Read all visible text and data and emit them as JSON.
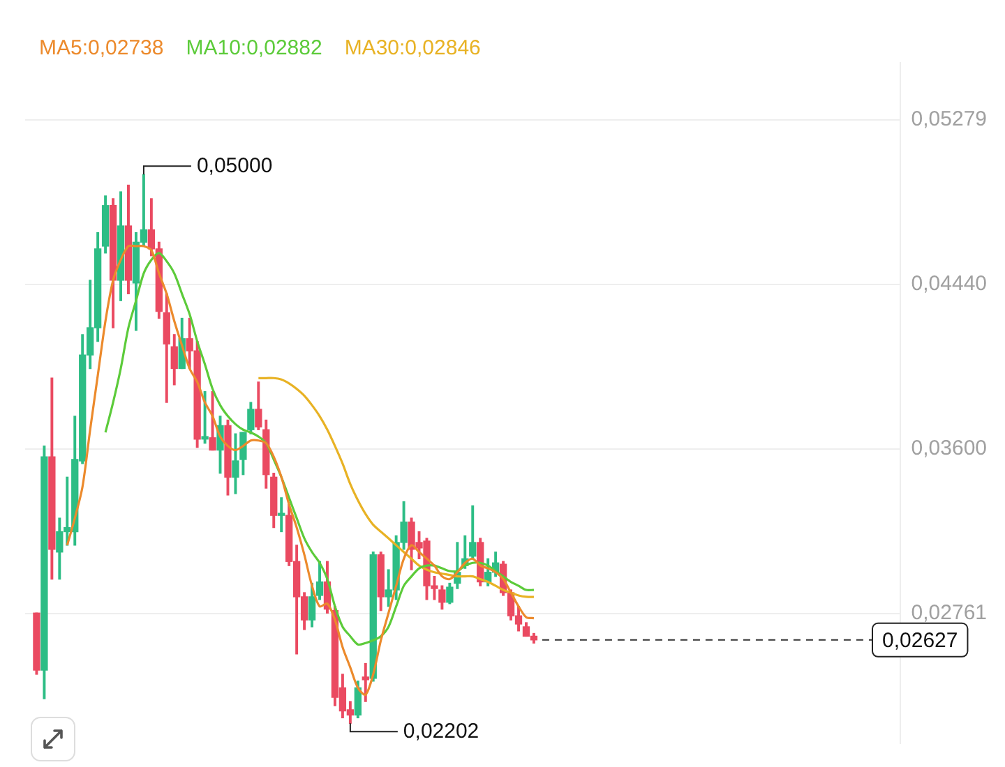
{
  "chart_data": {
    "type": "candlestick",
    "categories": [
      null,
      null,
      null,
      null,
      null,
      null,
      null,
      null,
      null,
      null,
      null,
      null,
      null,
      null,
      null,
      null,
      null,
      null,
      null,
      null,
      null,
      null,
      null,
      null,
      null,
      null,
      null,
      null,
      null,
      null,
      null,
      null,
      null,
      null,
      null,
      null,
      null,
      null,
      null,
      null,
      null,
      null,
      null,
      null,
      null,
      null,
      null,
      null,
      null,
      null,
      null,
      null,
      null,
      null,
      null,
      null,
      null,
      null,
      null,
      null,
      null,
      null,
      null,
      null,
      null,
      null
    ],
    "ohlc": [
      [
        0.02764,
        0.02764,
        0.02452,
        0.02473
      ],
      [
        0.02473,
        0.03616,
        0.02327,
        0.03561
      ],
      [
        0.03561,
        0.03962,
        0.02937,
        0.03089
      ],
      [
        0.03075,
        0.03248,
        0.02937,
        0.03179
      ],
      [
        0.03179,
        0.03457,
        0.0311,
        0.032
      ],
      [
        0.03179,
        0.03768,
        0.0311,
        0.03547
      ],
      [
        0.0354,
        0.04184,
        0.03526,
        0.0408
      ],
      [
        0.0408,
        0.04461,
        0.04011,
        0.04219
      ],
      [
        0.04219,
        0.04704,
        0.04149,
        0.04621
      ],
      [
        0.04635,
        0.04891,
        0.046,
        0.04842
      ],
      [
        0.04842,
        0.04877,
        0.04219,
        0.04461
      ],
      [
        0.04461,
        0.04912,
        0.04357,
        0.04738
      ],
      [
        0.04738,
        0.04946,
        0.04392,
        0.04461
      ],
      [
        0.04447,
        0.04704,
        0.04205,
        0.04655
      ],
      [
        0.04655,
        0.05,
        0.04635,
        0.04718
      ],
      [
        0.04718,
        0.04877,
        0.04586,
        0.04621
      ],
      [
        0.04621,
        0.04655,
        0.04267,
        0.04302
      ],
      [
        0.04295,
        0.04392,
        0.03838,
        0.04136
      ],
      [
        0.04122,
        0.04184,
        0.03928,
        0.04011
      ],
      [
        0.04011,
        0.04267,
        0.04011,
        0.04163
      ],
      [
        0.04163,
        0.04267,
        0.04011,
        0.04101
      ],
      [
        0.04101,
        0.04149,
        0.03609,
        0.03651
      ],
      [
        0.03651,
        0.03893,
        0.0363,
        0.03664
      ],
      [
        0.03658,
        0.03893,
        0.03595,
        0.03595
      ],
      [
        0.03595,
        0.03768,
        0.03477,
        0.0372
      ],
      [
        0.0372,
        0.03748,
        0.03366,
        0.03457
      ],
      [
        0.03457,
        0.03678,
        0.03373,
        0.0354
      ],
      [
        0.03547,
        0.03685,
        0.0347,
        0.03685
      ],
      [
        0.03699,
        0.03838,
        0.03678,
        0.03803
      ],
      [
        0.03803,
        0.03942,
        0.03699,
        0.03713
      ],
      [
        0.03699,
        0.03748,
        0.03401,
        0.0347
      ],
      [
        0.03457,
        0.03477,
        0.032,
        0.03262
      ],
      [
        0.03262,
        0.03352,
        0.03179,
        0.03269
      ],
      [
        0.03262,
        0.03318,
        0.03006,
        0.03027
      ],
      [
        0.03027,
        0.0311,
        0.02556,
        0.02847
      ],
      [
        0.02847,
        0.02868,
        0.0268,
        0.02729
      ],
      [
        0.02729,
        0.02916,
        0.02694,
        0.02847
      ],
      [
        0.02854,
        0.03027,
        0.02833,
        0.02923
      ],
      [
        0.02923,
        0.03027,
        0.02764,
        0.02784
      ],
      [
        0.02777,
        0.02798,
        0.02292,
        0.02334
      ],
      [
        0.02383,
        0.02452,
        0.0223,
        0.02265
      ],
      [
        0.02271,
        0.02313,
        0.02202,
        0.02244
      ],
      [
        0.02244,
        0.02417,
        0.0223,
        0.02383
      ],
      [
        0.02438,
        0.02507,
        0.02313,
        0.02424
      ],
      [
        0.02431,
        0.03075,
        0.02417,
        0.03061
      ],
      [
        0.03061,
        0.03075,
        0.02777,
        0.02847
      ],
      [
        0.02847,
        0.02985,
        0.02798,
        0.02882
      ],
      [
        0.02882,
        0.03158,
        0.02833,
        0.03124
      ],
      [
        0.03124,
        0.03332,
        0.03089,
        0.03228
      ],
      [
        0.03228,
        0.03248,
        0.02985,
        0.03089
      ],
      [
        0.03124,
        0.03179,
        0.03041,
        0.03096
      ],
      [
        0.03131,
        0.03145,
        0.02833,
        0.02903
      ],
      [
        0.02903,
        0.02951,
        0.02833,
        0.02889
      ],
      [
        0.02882,
        0.02903,
        0.02784,
        0.02819
      ],
      [
        0.02819,
        0.02916,
        0.02812,
        0.02896
      ],
      [
        0.02916,
        0.03124,
        0.02889,
        0.02972
      ],
      [
        0.03006,
        0.03158,
        0.02992,
        0.03041
      ],
      [
        0.03054,
        0.03311,
        0.03041,
        0.03124
      ],
      [
        0.03124,
        0.03145,
        0.02903,
        0.02923
      ],
      [
        0.02923,
        0.03041,
        0.02903,
        0.02972
      ],
      [
        0.02972,
        0.03075,
        0.02951,
        0.0302
      ],
      [
        0.03013,
        0.03027,
        0.02854,
        0.02868
      ],
      [
        0.02868,
        0.02882,
        0.02729,
        0.0275
      ],
      [
        0.0275,
        0.02798,
        0.02673,
        0.02708
      ],
      [
        0.02694,
        0.02715,
        0.02646,
        0.02646
      ],
      [
        0.02646,
        0.0266,
        0.02611,
        0.02627
      ]
    ],
    "series": [
      {
        "name": "MA5:0,02738",
        "type": "line",
        "color": "#ec8a2c",
        "values": [
          null,
          null,
          null,
          null,
          0.0311,
          0.03248,
          0.03408,
          0.03699,
          0.03976,
          0.04253,
          0.04461,
          0.04565,
          0.04635,
          0.04635,
          0.04635,
          0.04614,
          0.04496,
          0.04392,
          0.04253,
          0.04129,
          0.04011,
          0.03942,
          0.03838,
          0.03768,
          0.03664,
          0.03616,
          0.03595,
          0.03616,
          0.03644,
          0.03644,
          0.0363,
          0.03561,
          0.03457,
          0.03318,
          0.032,
          0.03061,
          0.02903,
          0.02798,
          0.02812,
          0.02729,
          0.0259,
          0.02487,
          0.02383,
          0.02348,
          0.02452,
          0.02625,
          0.02764,
          0.02903,
          0.03041,
          0.0311,
          0.03075,
          0.03041,
          0.03006,
          0.02951,
          0.02937,
          0.02972,
          0.0302,
          0.03041,
          0.03006,
          0.02992,
          0.02972,
          0.02937,
          0.02868,
          0.02798,
          0.02743,
          0.02738
        ]
      },
      {
        "name": "MA10:0,02882",
        "type": "line",
        "color": "#5ccb3a",
        "values": [
          null,
          null,
          null,
          null,
          null,
          null,
          null,
          null,
          null,
          0.03685,
          0.03838,
          0.04011,
          0.04219,
          0.04357,
          0.04496,
          0.04565,
          0.046,
          0.04558,
          0.04496,
          0.04392,
          0.04288,
          0.04149,
          0.04032,
          0.03907,
          0.03824,
          0.03768,
          0.03727,
          0.03699,
          0.03685,
          0.03664,
          0.0363,
          0.03547,
          0.03457,
          0.03352,
          0.03248,
          0.03145,
          0.03075,
          0.0302,
          0.02937,
          0.02798,
          0.02694,
          0.02646,
          0.02604,
          0.02611,
          0.02625,
          0.02646,
          0.02694,
          0.02798,
          0.02903,
          0.02951,
          0.02992,
          0.03006,
          0.03006,
          0.02992,
          0.02978,
          0.02978,
          0.03006,
          0.0302,
          0.0302,
          0.03006,
          0.02978,
          0.02951,
          0.02923,
          0.02903,
          0.02882,
          0.02882
        ]
      },
      {
        "name": "MA30:0,02846",
        "type": "line",
        "color": "#e8b224",
        "values": [
          null,
          null,
          null,
          null,
          null,
          null,
          null,
          null,
          null,
          null,
          null,
          null,
          null,
          null,
          null,
          null,
          null,
          null,
          null,
          null,
          null,
          null,
          null,
          null,
          null,
          null,
          null,
          null,
          null,
          0.03962,
          0.03962,
          0.03962,
          0.03955,
          0.03935,
          0.03907,
          0.03872,
          0.03824,
          0.03768,
          0.03699,
          0.03616,
          0.03526,
          0.03422,
          0.03339,
          0.03269,
          0.03214,
          0.03179,
          0.03145,
          0.0311,
          0.03075,
          0.03041,
          0.03006,
          0.02985,
          0.02972,
          0.02965,
          0.02958,
          0.02951,
          0.02951,
          0.02951,
          0.02937,
          0.02923,
          0.02903,
          0.02882,
          0.02868,
          0.02854,
          0.02847,
          0.02846
        ]
      }
    ],
    "ylim": [
      0.021,
      0.0557
    ],
    "yticks": [
      {
        "value": 0.05279,
        "label": "0,05279"
      },
      {
        "value": 0.0444,
        "label": "0,04440"
      },
      {
        "value": 0.036,
        "label": "0,03600"
      },
      {
        "value": 0.02761,
        "label": "0,02761"
      }
    ],
    "ref_lines": [
      {
        "axis": "y",
        "value": 0.02627,
        "label": "0,02627",
        "line_style": "dashed"
      }
    ],
    "annotations": [
      "0,05000",
      "0,02202"
    ],
    "grid": "y",
    "legend": "top",
    "tick_labels": "y"
  }
}
